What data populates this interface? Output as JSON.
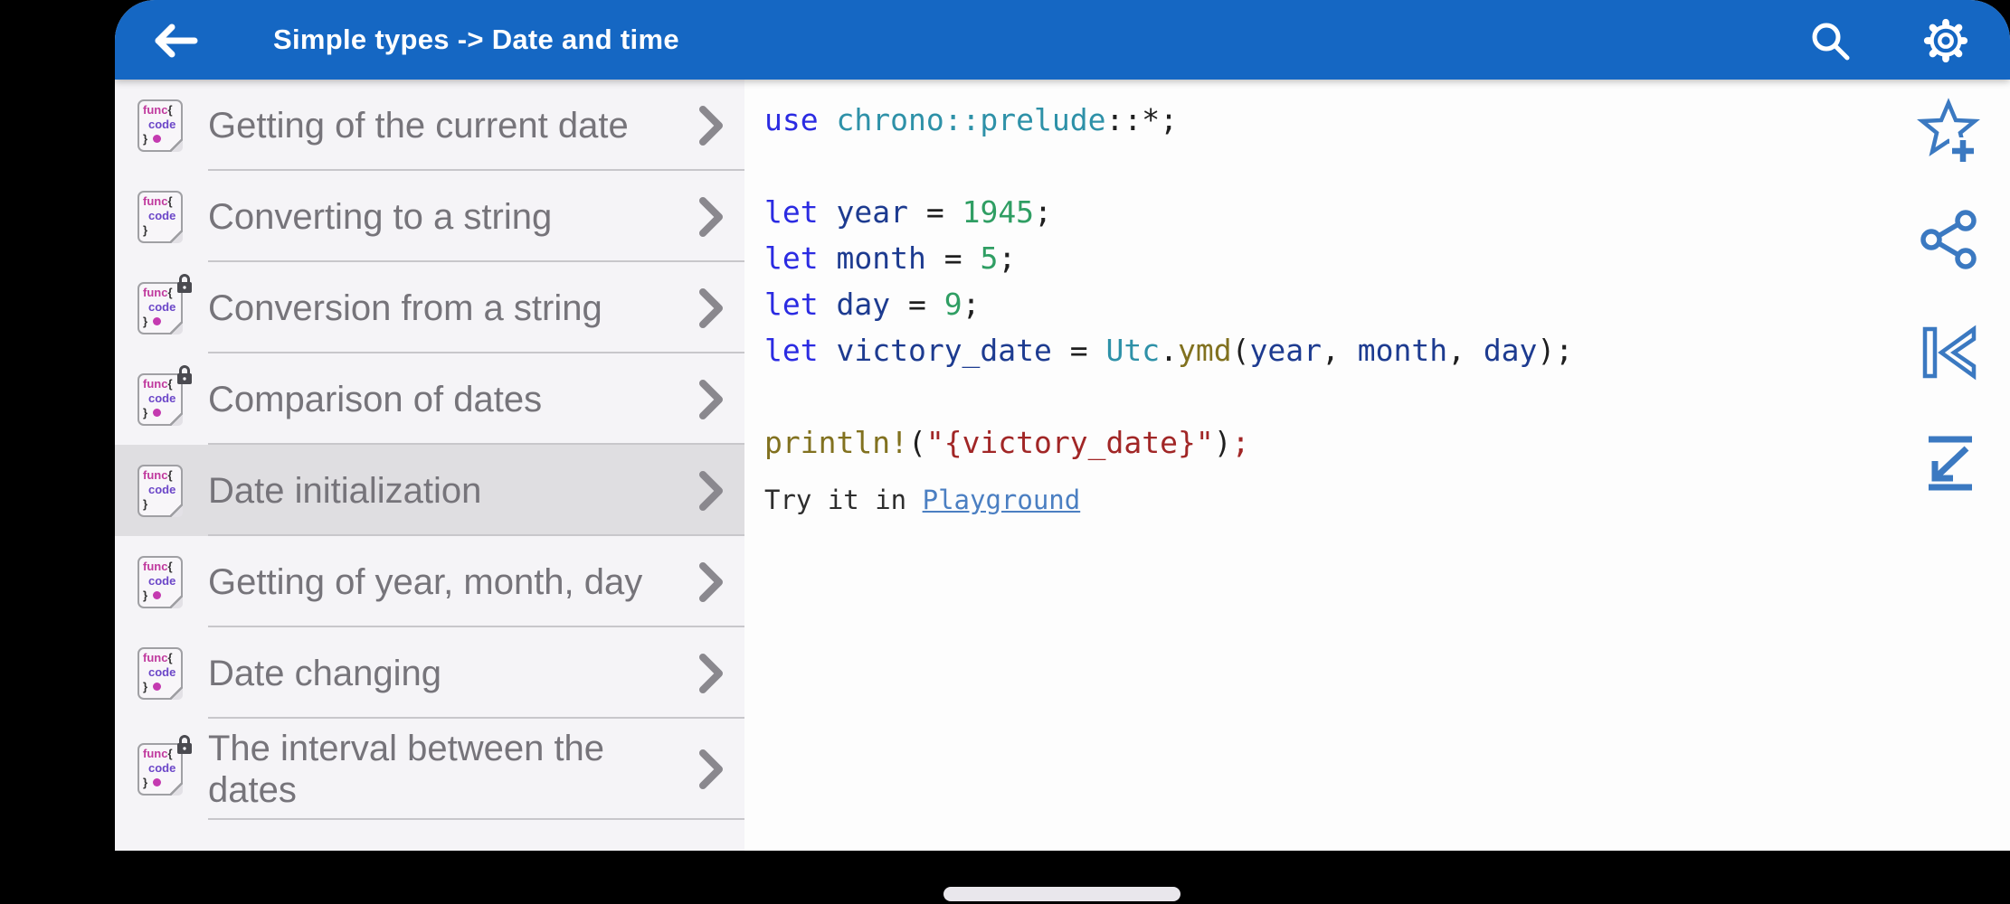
{
  "header": {
    "title": "Simple types -> Date and time",
    "icons": [
      "back-arrow-icon",
      "search-icon",
      "gear-icon"
    ]
  },
  "sidebar": {
    "icon_text": {
      "func": "func",
      "open": "{",
      "code": "code",
      "close": "}"
    },
    "items": [
      {
        "label": "Getting of the current date",
        "locked": false,
        "dot": true,
        "selected": false
      },
      {
        "label": "Converting to a string",
        "locked": false,
        "dot": false,
        "selected": false
      },
      {
        "label": "Conversion from a string",
        "locked": true,
        "dot": true,
        "selected": false
      },
      {
        "label": "Comparison of dates",
        "locked": true,
        "dot": true,
        "selected": false
      },
      {
        "label": "Date initialization",
        "locked": false,
        "dot": false,
        "selected": true
      },
      {
        "label": "Getting of year, month, day",
        "locked": false,
        "dot": true,
        "selected": false
      },
      {
        "label": "Date changing",
        "locked": false,
        "dot": true,
        "selected": false
      },
      {
        "label": "The interval between the dates",
        "locked": true,
        "dot": true,
        "selected": false
      }
    ]
  },
  "code": {
    "lines": [
      [
        [
          "kw",
          "use"
        ],
        [
          "pl",
          " "
        ],
        [
          "cls",
          "chrono::prelude"
        ],
        [
          "pl",
          "::*;"
        ]
      ],
      [],
      [
        [
          "kw",
          "let"
        ],
        [
          "pl",
          " "
        ],
        [
          "id",
          "year"
        ],
        [
          "pl",
          " = "
        ],
        [
          "num",
          "1945"
        ],
        [
          "pl",
          ";"
        ]
      ],
      [
        [
          "kw",
          "let"
        ],
        [
          "pl",
          " "
        ],
        [
          "id",
          "month"
        ],
        [
          "pl",
          " = "
        ],
        [
          "num",
          "5"
        ],
        [
          "pl",
          ";"
        ]
      ],
      [
        [
          "kw",
          "let"
        ],
        [
          "pl",
          " "
        ],
        [
          "id",
          "day"
        ],
        [
          "pl",
          " = "
        ],
        [
          "num",
          "9"
        ],
        [
          "pl",
          ";"
        ]
      ],
      [
        [
          "kw",
          "let"
        ],
        [
          "pl",
          " "
        ],
        [
          "id",
          "victory_date"
        ],
        [
          "pl",
          " = "
        ],
        [
          "cls",
          "Utc"
        ],
        [
          "pl",
          "."
        ],
        [
          "fn",
          "ymd"
        ],
        [
          "pl",
          "("
        ],
        [
          "id",
          "year"
        ],
        [
          "pl",
          ", "
        ],
        [
          "id",
          "month"
        ],
        [
          "pl",
          ", "
        ],
        [
          "id",
          "day"
        ],
        [
          "pl",
          ");"
        ]
      ],
      [],
      [
        [
          "fn",
          "println!"
        ],
        [
          "pl",
          "("
        ],
        [
          "str",
          "\"{victory_date}\""
        ],
        [
          "pl",
          ")"
        ],
        [
          "str",
          ";"
        ]
      ]
    ],
    "try_it": {
      "prefix": "Try it in ",
      "link": "Playground"
    }
  },
  "action_icons": [
    "star-plus-icon",
    "share-icon",
    "skip-to-start-icon",
    "collapse-arrow-icon"
  ],
  "colors": {
    "header_bg": "#1567c3",
    "accent_icons": "#3b79c1",
    "selected_row": "#dfdee1",
    "sidebar_bg": "#f5f4f7",
    "code_bg": "#fdfdfd",
    "label_text": "#76747a",
    "link": "#4b7fc2",
    "syntax": {
      "kw": "#2b2be2",
      "id": "#1d3b90",
      "num": "#2f9e63",
      "cls": "#2e91a8",
      "fn": "#81711f",
      "str": "#a12626",
      "pl": "#1f1f1f"
    }
  }
}
